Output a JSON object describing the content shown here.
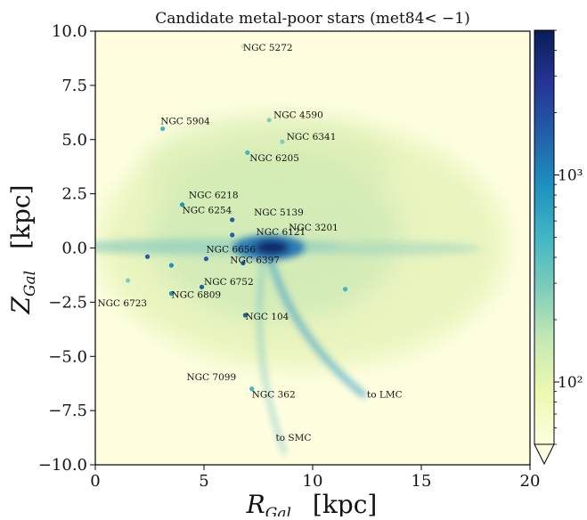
{
  "chart_data": {
    "type": "heatmap",
    "title": "Candidate metal-poor stars (met84< −1)",
    "xlabel_main": "R",
    "xlabel_sub": "Gal",
    "xlabel_unit": "[kpc]",
    "ylabel_main": "Z",
    "ylabel_sub": "Gal",
    "ylabel_unit": "[kpc]",
    "xlim": [
      0,
      20
    ],
    "ylim": [
      -10,
      10
    ],
    "x_ticks": [
      0,
      5,
      10,
      15,
      20
    ],
    "x_tick_labels": [
      "0",
      "5",
      "10",
      "15",
      "20"
    ],
    "y_ticks": [
      10,
      7.5,
      5,
      2.5,
      0,
      -2.5,
      -5,
      -7.5,
      -10
    ],
    "y_tick_labels": [
      "10.0",
      "7.5",
      "5.0",
      "2.5",
      "0.0",
      "−2.5",
      "−5.0",
      "−7.5",
      "−10.0"
    ],
    "colorbar": {
      "scale": "log",
      "extend": "min",
      "range": [
        50,
        5000
      ],
      "ticks": [
        100,
        1000
      ],
      "tick_labels": [
        "10²",
        "10³"
      ],
      "colors": [
        "#ffffe0",
        "#edf8b1",
        "#c7e9b4",
        "#7fcdbb",
        "#41b6c4",
        "#1d91c0",
        "#225ea8",
        "#253494",
        "#081d58"
      ]
    },
    "annotations": [
      {
        "text": "NGC 5272",
        "x": 6.8,
        "y": 9.1
      },
      {
        "text": "NGC 4590",
        "x": 8.2,
        "y": 6.0
      },
      {
        "text": "NGC 5904",
        "x": 3.0,
        "y": 5.7
      },
      {
        "text": "NGC 6341",
        "x": 8.8,
        "y": 5.0
      },
      {
        "text": "NGC 6205",
        "x": 7.1,
        "y": 4.0
      },
      {
        "text": "NGC 6218",
        "x": 4.3,
        "y": 2.3
      },
      {
        "text": "NGC 6254",
        "x": 4.0,
        "y": 1.6
      },
      {
        "text": "NGC 5139",
        "x": 7.3,
        "y": 1.5
      },
      {
        "text": "NGC 3201",
        "x": 8.9,
        "y": 0.8
      },
      {
        "text": "NGC 6121",
        "x": 7.4,
        "y": 0.6
      },
      {
        "text": "NGC 6656",
        "x": 5.1,
        "y": -0.2
      },
      {
        "text": "NGC 6397",
        "x": 6.2,
        "y": -0.7
      },
      {
        "text": "NGC 6752",
        "x": 5.0,
        "y": -1.7
      },
      {
        "text": "NGC 6809",
        "x": 3.5,
        "y": -2.3
      },
      {
        "text": "NGC 6723",
        "x": 0.1,
        "y": -2.7
      },
      {
        "text": "NGC 104",
        "x": 6.9,
        "y": -3.3
      },
      {
        "text": "NGC 7099",
        "x": 4.2,
        "y": -6.1
      },
      {
        "text": "NGC 362",
        "x": 7.2,
        "y": -6.9
      },
      {
        "text": "to LMC",
        "x": 12.5,
        "y": -6.9
      },
      {
        "text": "to SMC",
        "x": 8.3,
        "y": -8.9
      }
    ],
    "cluster_points": [
      {
        "x": 6.8,
        "y": 9.3,
        "v": 200
      },
      {
        "x": 8.0,
        "y": 5.9,
        "v": 300
      },
      {
        "x": 3.1,
        "y": 5.5,
        "v": 400
      },
      {
        "x": 8.6,
        "y": 4.9,
        "v": 300
      },
      {
        "x": 7.0,
        "y": 4.4,
        "v": 600
      },
      {
        "x": 4.0,
        "y": 2.0,
        "v": 700
      },
      {
        "x": 6.3,
        "y": 1.3,
        "v": 1500
      },
      {
        "x": 6.3,
        "y": 0.6,
        "v": 2000
      },
      {
        "x": 5.1,
        "y": -0.5,
        "v": 1800
      },
      {
        "x": 6.8,
        "y": -0.7,
        "v": 1800
      },
      {
        "x": 4.9,
        "y": -1.8,
        "v": 1500
      },
      {
        "x": 3.5,
        "y": -2.1,
        "v": 900
      },
      {
        "x": 2.4,
        "y": -0.4,
        "v": 1500
      },
      {
        "x": 3.5,
        "y": -0.8,
        "v": 900
      },
      {
        "x": 6.9,
        "y": -3.1,
        "v": 1800
      },
      {
        "x": 7.2,
        "y": -6.5,
        "v": 400
      },
      {
        "x": 11.5,
        "y": -1.9,
        "v": 400
      },
      {
        "x": 1.5,
        "y": -1.5,
        "v": 300
      }
    ]
  }
}
